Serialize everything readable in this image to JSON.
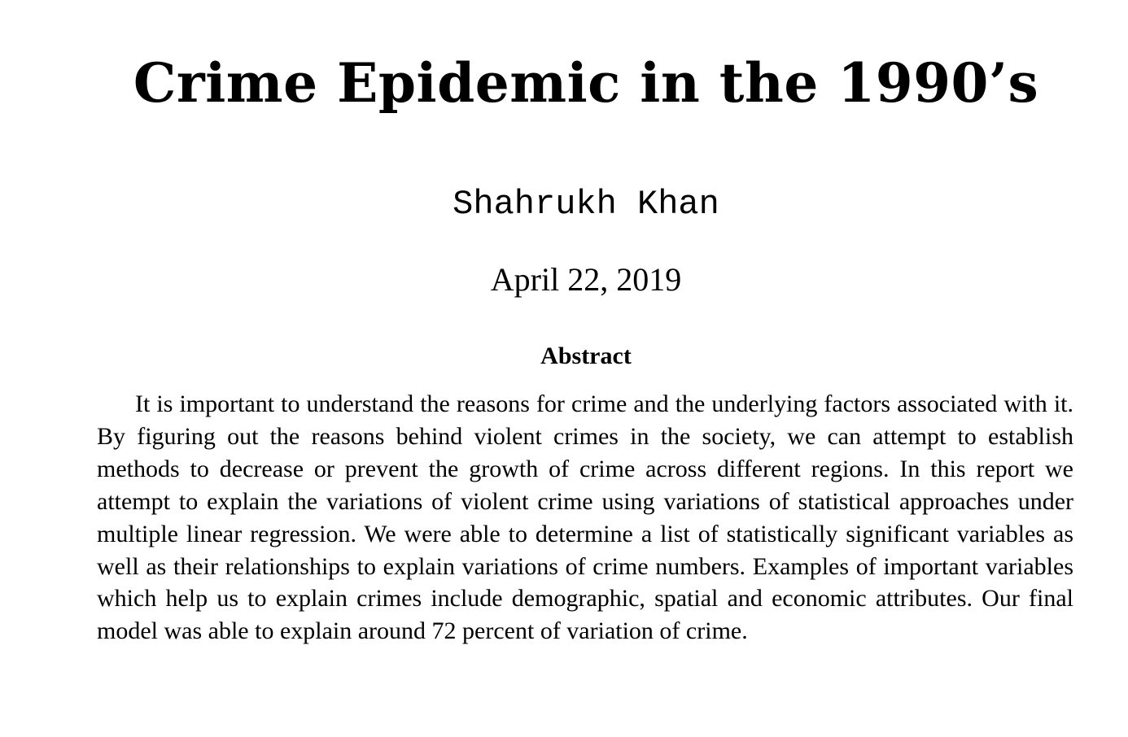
{
  "paper": {
    "title": "Crime Epidemic in the 1990’s",
    "author": "Shahrukh Khan",
    "date": "April 22, 2019",
    "abstract": {
      "heading": "Abstract",
      "body": "It is important to understand the reasons for crime and the underlying factors associated with it. By figuring out the reasons behind violent crimes in the society, we can attempt to establish methods to decrease or prevent the growth of crime across different regions. In this report we attempt to explain the variations of violent crime using variations of statistical approaches under multiple linear regression. We were able to determine a list of statistically significant variables as well as their relationships to explain variations of crime numbers. Examples of important variables which help us to explain crimes include demographic, spatial and economic attributes. Our final model was able to explain around 72 percent of variation of crime."
    }
  }
}
